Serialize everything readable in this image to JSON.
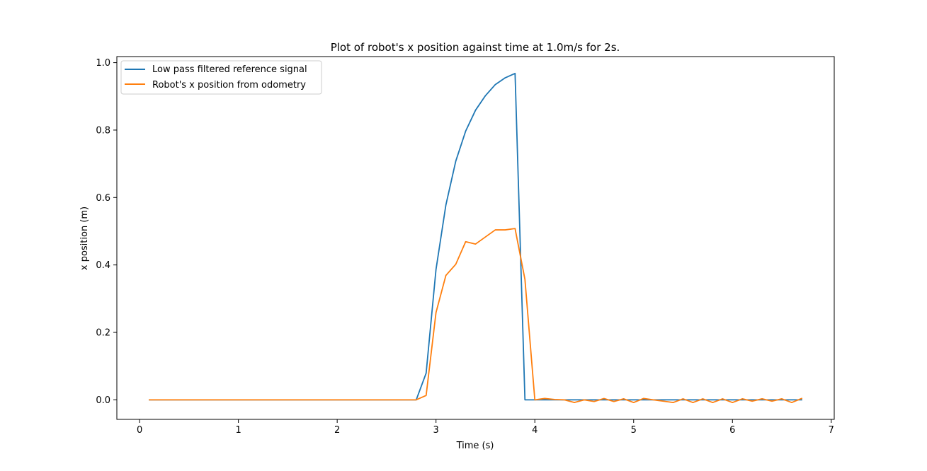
{
  "chart_data": {
    "type": "line",
    "title": "Plot of robot's x position against time at 1.0m/s for 2s.",
    "xlabel": "Time (s)",
    "ylabel": "x position (m)",
    "xlim": [
      -0.23,
      7.03
    ],
    "ylim": [
      -0.058,
      1.018
    ],
    "xticks": [
      0,
      1,
      2,
      3,
      4,
      5,
      6,
      7
    ],
    "yticks": [
      0.0,
      0.2,
      0.4,
      0.6,
      0.8,
      1.0
    ],
    "xtick_labels": [
      "0",
      "1",
      "2",
      "3",
      "4",
      "5",
      "6",
      "7"
    ],
    "ytick_labels": [
      "0.0",
      "0.2",
      "0.4",
      "0.6",
      "0.8",
      "1.0"
    ],
    "grid": false,
    "legend_position": "top-left",
    "series": [
      {
        "name": "Low pass filtered reference signal",
        "color": "#1f77b4",
        "x": [
          0.1,
          0.2,
          0.3,
          0.4,
          0.5,
          0.6,
          0.7,
          0.8,
          0.9,
          1.0,
          1.1,
          1.2,
          1.3,
          1.4,
          1.5,
          1.6,
          1.7,
          1.8,
          1.9,
          2.0,
          2.1,
          2.2,
          2.3,
          2.4,
          2.5,
          2.6,
          2.7,
          2.8,
          2.9,
          3.0,
          3.1,
          3.2,
          3.3,
          3.4,
          3.5,
          3.6,
          3.7,
          3.8,
          3.9,
          4.0,
          4.1,
          4.2,
          4.3,
          4.4,
          4.5,
          4.6,
          4.7,
          4.8,
          4.9,
          5.0,
          5.1,
          5.2,
          5.3,
          5.4,
          5.5,
          5.6,
          5.7,
          5.8,
          5.9,
          6.0,
          6.1,
          6.2,
          6.3,
          6.4,
          6.5,
          6.6,
          6.7
        ],
        "y": [
          0.0,
          0.0,
          0.0,
          0.0,
          0.0,
          0.0,
          0.0,
          0.0,
          0.0,
          0.0,
          0.0,
          0.0,
          0.0,
          0.0,
          0.0,
          0.0,
          0.0,
          0.0,
          0.0,
          0.0,
          0.0,
          0.0,
          0.0,
          0.0,
          0.0,
          0.0,
          0.0,
          0.0,
          0.079,
          0.387,
          0.578,
          0.708,
          0.797,
          0.859,
          0.902,
          0.935,
          0.955,
          0.968,
          0.0,
          0.0,
          0.0,
          0.0,
          0.0,
          0.0,
          0.0,
          0.0,
          0.0,
          0.0,
          0.0,
          0.0,
          0.0,
          0.0,
          0.0,
          0.0,
          0.0,
          0.0,
          0.0,
          0.0,
          0.0,
          0.0,
          0.0,
          0.0,
          0.0,
          0.0,
          0.0,
          0.0,
          0.0
        ]
      },
      {
        "name": "Robot's x position from odometry",
        "color": "#ff7f0e",
        "x": [
          0.1,
          0.2,
          0.3,
          0.4,
          0.5,
          0.6,
          0.7,
          0.8,
          0.9,
          1.0,
          1.1,
          1.2,
          1.3,
          1.4,
          1.5,
          1.6,
          1.7,
          1.8,
          1.9,
          2.0,
          2.1,
          2.2,
          2.3,
          2.4,
          2.5,
          2.6,
          2.7,
          2.8,
          2.9,
          3.0,
          3.1,
          3.2,
          3.3,
          3.4,
          3.5,
          3.6,
          3.7,
          3.8,
          3.9,
          4.0,
          4.1,
          4.2,
          4.3,
          4.4,
          4.5,
          4.6,
          4.7,
          4.8,
          4.9,
          5.0,
          5.1,
          5.2,
          5.3,
          5.4,
          5.5,
          5.6,
          5.7,
          5.8,
          5.9,
          6.0,
          6.1,
          6.2,
          6.3,
          6.4,
          6.5,
          6.6,
          6.7
        ],
        "y": [
          0.0,
          0.0,
          0.0,
          0.0,
          0.0,
          0.0,
          0.0,
          0.0,
          0.0,
          0.0,
          0.0,
          0.0,
          0.0,
          0.0,
          0.0,
          0.0,
          0.0,
          0.0,
          0.0,
          0.0,
          0.0,
          0.0,
          0.0,
          0.0,
          0.0,
          0.0,
          0.0,
          0.0,
          0.013,
          0.259,
          0.369,
          0.402,
          0.469,
          0.462,
          0.483,
          0.504,
          0.504,
          0.508,
          0.357,
          0.0,
          0.004,
          0.001,
          0.0,
          -0.008,
          0.0,
          -0.005,
          0.004,
          -0.005,
          0.003,
          -0.008,
          0.004,
          0.0,
          -0.004,
          -0.008,
          0.003,
          -0.008,
          0.003,
          -0.008,
          0.003,
          -0.008,
          0.003,
          -0.004,
          0.003,
          -0.004,
          0.003,
          -0.008,
          0.004
        ]
      }
    ]
  }
}
